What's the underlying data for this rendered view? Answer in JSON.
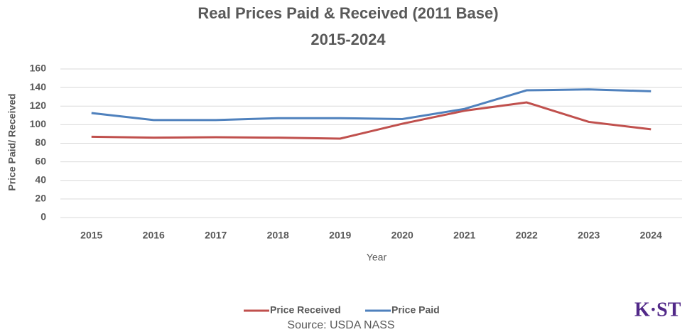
{
  "chart_data": {
    "type": "line",
    "title": "Real Prices Paid & Received (2011 Base)",
    "subtitle": "2015-2024",
    "x_label": "Year",
    "y_label": "Price Paid/ Received",
    "source": "Source: USDA NASS",
    "logo": "K·ST",
    "categories": [
      "2015",
      "2016",
      "2017",
      "2018",
      "2019",
      "2020",
      "2021",
      "2022",
      "2023",
      "2024"
    ],
    "series": [
      {
        "name": "Price Received",
        "color": "#c0504d",
        "values": [
          87,
          86,
          86.5,
          86,
          85,
          101,
          115,
          124,
          103,
          95
        ]
      },
      {
        "name": "Price Paid",
        "color": "#4f81bd",
        "values": [
          112.5,
          105,
          105,
          107,
          107,
          106,
          117,
          137,
          138,
          136
        ]
      }
    ],
    "ylim": [
      0,
      160
    ],
    "yticks": [
      0,
      20,
      40,
      60,
      80,
      100,
      120,
      140,
      160
    ],
    "grid": true
  }
}
